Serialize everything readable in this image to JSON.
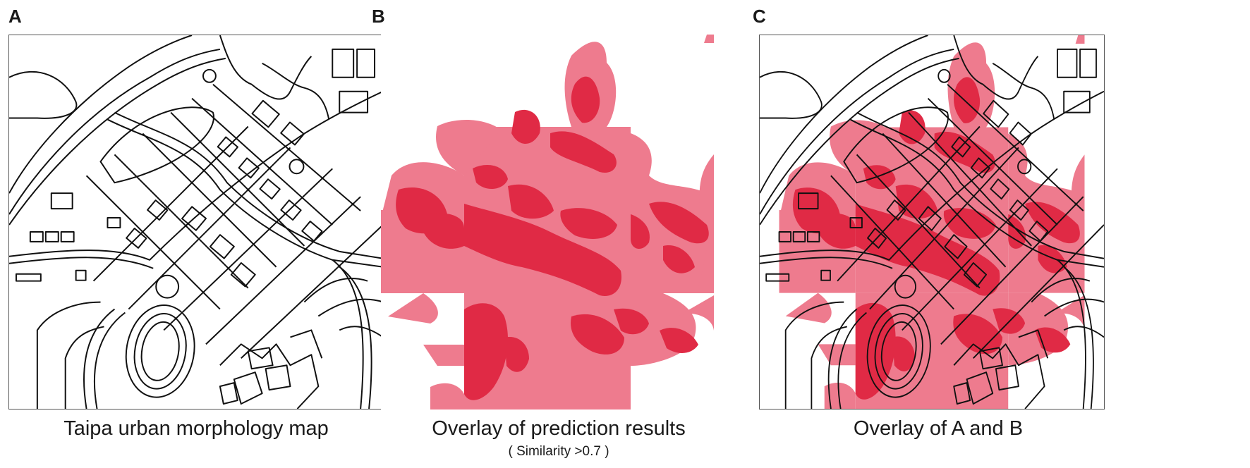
{
  "panels": [
    {
      "letter": "A",
      "caption": "Taipa urban morphology map",
      "subcaption": ""
    },
    {
      "letter": "B",
      "caption": "Overlay of prediction results",
      "subcaption": "( Similarity >0.7 )"
    },
    {
      "letter": "C",
      "caption": "Overlay of A and B",
      "subcaption": ""
    }
  ],
  "colors": {
    "prediction_light": "#ee7b8e",
    "prediction_dark": "#e02a45",
    "map_lines": "#111111",
    "background": "#ffffff"
  }
}
